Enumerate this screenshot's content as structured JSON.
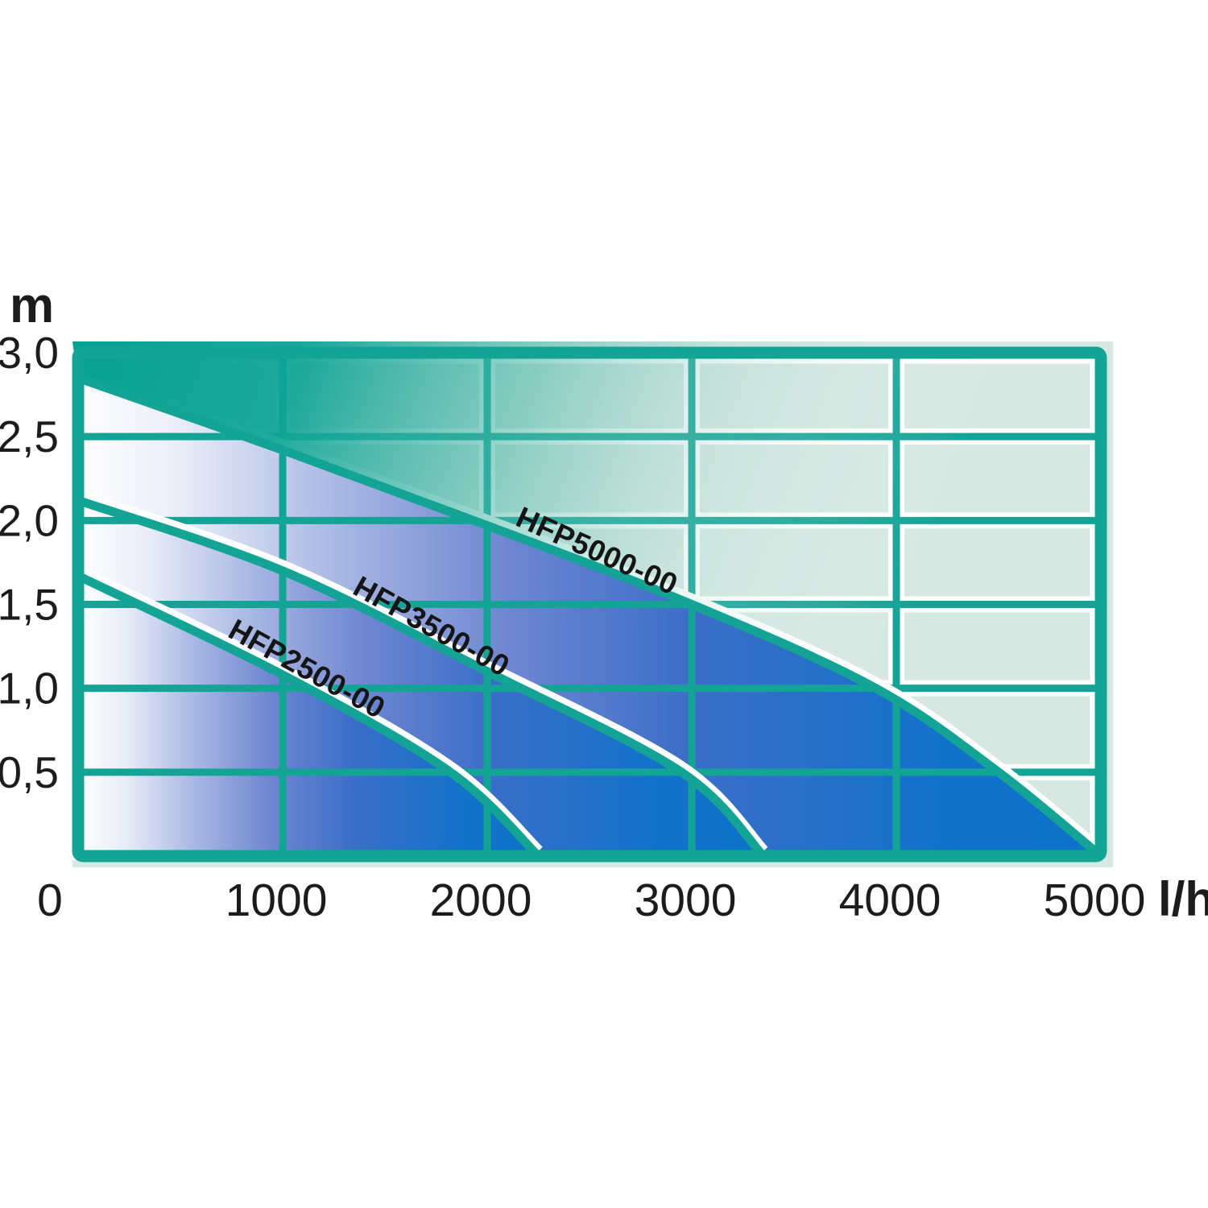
{
  "chart_data": {
    "type": "area",
    "title": "",
    "xlabel": "l/h",
    "ylabel": "m",
    "xlim": [
      0,
      5000
    ],
    "ylim": [
      0,
      3.0
    ],
    "grid": true,
    "x_ticks": [
      {
        "value": 0,
        "label": "0"
      },
      {
        "value": 1000,
        "label": "1000"
      },
      {
        "value": 2000,
        "label": "2000"
      },
      {
        "value": 3000,
        "label": "3000"
      },
      {
        "value": 4000,
        "label": "4000"
      },
      {
        "value": 5000,
        "label": "5000"
      }
    ],
    "y_ticks": [
      {
        "value": 0.5,
        "label": "0,5"
      },
      {
        "value": 1.0,
        "label": "1,0"
      },
      {
        "value": 1.5,
        "label": "1,5"
      },
      {
        "value": 2.0,
        "label": "2,0"
      },
      {
        "value": 2.5,
        "label": "2,5"
      },
      {
        "value": 3.0,
        "label": "3,0"
      }
    ],
    "legend_position": "labels-on-curves",
    "series": [
      {
        "name": "HFP5000-00",
        "max_head_m": 2.85,
        "max_flow_lh": 5000,
        "points": [
          [
            0,
            2.85
          ],
          [
            1000,
            2.42
          ],
          [
            2000,
            1.97
          ],
          [
            3000,
            1.5
          ],
          [
            3900,
            1.0
          ],
          [
            4500,
            0.5
          ],
          [
            5000,
            0
          ]
        ],
        "label_at_flow": 2110
      },
      {
        "name": "HFP3500-00",
        "max_head_m": 2.12,
        "max_flow_lh": 3350,
        "points": [
          [
            0,
            2.12
          ],
          [
            1000,
            1.7
          ],
          [
            2000,
            1.1
          ],
          [
            2950,
            0.5
          ],
          [
            3350,
            0
          ]
        ],
        "label_at_flow": 1310
      },
      {
        "name": "HFP2500-00",
        "max_head_m": 1.67,
        "max_flow_lh": 2250,
        "points": [
          [
            0,
            1.67
          ],
          [
            1000,
            1.08
          ],
          [
            1820,
            0.5
          ],
          [
            2250,
            0
          ]
        ],
        "label_at_flow": 700
      }
    ],
    "colors": {
      "grid_teal": "#14A496",
      "teal_dark": "#04A192",
      "mint_pale": "#D7E8E3",
      "blue_deep": "#0E72C9",
      "blue_mid": "#6E86D1",
      "blue_light": "#AAB8E4",
      "fill_start": "#FFFFFF",
      "halo_white": "#FFFFFF",
      "tick_text": "#1C1C1C",
      "label_text": "#151515"
    }
  }
}
